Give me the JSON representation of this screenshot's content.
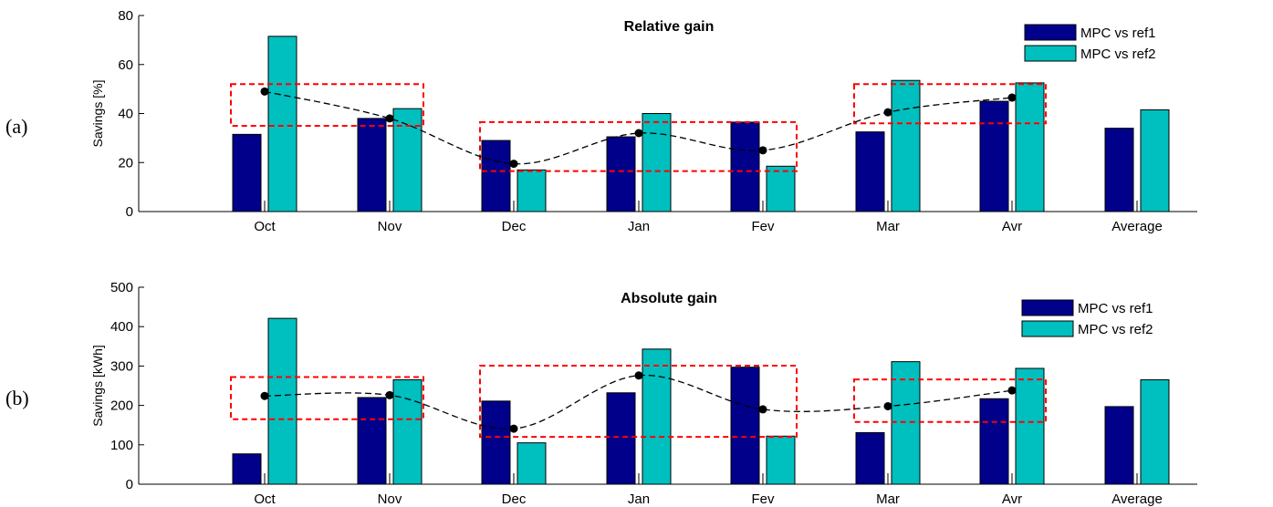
{
  "chart_data": [
    {
      "type": "bar",
      "panel_label": "(a)",
      "title": "Relative gain",
      "xlabel": "",
      "ylabel": "Savings [%]",
      "ylim": [
        0,
        80
      ],
      "yticks": [
        0,
        20,
        40,
        60,
        80
      ],
      "categories": [
        "Oct",
        "Nov",
        "Dec",
        "Jan",
        "Fev",
        "Mar",
        "Avr",
        "Average"
      ],
      "series": [
        {
          "name": "MPC vs ref1",
          "color": "#00008b",
          "values": [
            31.5,
            38,
            29,
            30.5,
            36.5,
            32.5,
            45,
            34
          ]
        },
        {
          "name": "MPC vs ref2",
          "color": "#00bfbf",
          "values": [
            71.5,
            42,
            17,
            40,
            18.5,
            53.5,
            52.5,
            41.5
          ]
        }
      ],
      "trend": {
        "categories": [
          "Oct",
          "Nov",
          "Dec",
          "Jan",
          "Fev",
          "Mar",
          "Avr"
        ],
        "values": [
          49,
          38,
          19.5,
          32,
          25,
          40.5,
          46.5
        ]
      },
      "highlight_boxes": [
        {
          "from": "Oct",
          "to": "Nov",
          "ymin": 35,
          "ymax": 52
        },
        {
          "from": "Dec",
          "to": "Fev",
          "ymin": 16.5,
          "ymax": 36.5
        },
        {
          "from": "Mar",
          "to": "Avr",
          "ymin": 36,
          "ymax": 52
        }
      ],
      "legend_position": "top-right"
    },
    {
      "type": "bar",
      "panel_label": "(b)",
      "title": "Absolute gain",
      "xlabel": "",
      "ylabel": "Savings [kWh]",
      "ylim": [
        0,
        500
      ],
      "yticks": [
        0,
        100,
        200,
        300,
        400,
        500
      ],
      "categories": [
        "Oct",
        "Nov",
        "Dec",
        "Jan",
        "Fev",
        "Mar",
        "Avr",
        "Average"
      ],
      "series": [
        {
          "name": "MPC vs ref1",
          "color": "#00008b",
          "values": [
            77,
            220,
            211,
            232,
            297,
            131,
            217,
            197
          ]
        },
        {
          "name": "MPC vs ref2",
          "color": "#00bfbf",
          "values": [
            421,
            265,
            105,
            343,
            122,
            311,
            294,
            265
          ]
        }
      ],
      "trend": {
        "categories": [
          "Oct",
          "Nov",
          "Dec",
          "Jan",
          "Fev",
          "Mar",
          "Avr"
        ],
        "values": [
          224,
          226,
          141,
          276,
          190,
          198,
          238
        ]
      },
      "highlight_boxes": [
        {
          "from": "Oct",
          "to": "Nov",
          "ymin": 165,
          "ymax": 272
        },
        {
          "from": "Dec",
          "to": "Fev",
          "ymin": 120,
          "ymax": 301
        },
        {
          "from": "Mar",
          "to": "Avr",
          "ymin": 158,
          "ymax": 266
        }
      ],
      "legend_position": "top-right"
    }
  ]
}
